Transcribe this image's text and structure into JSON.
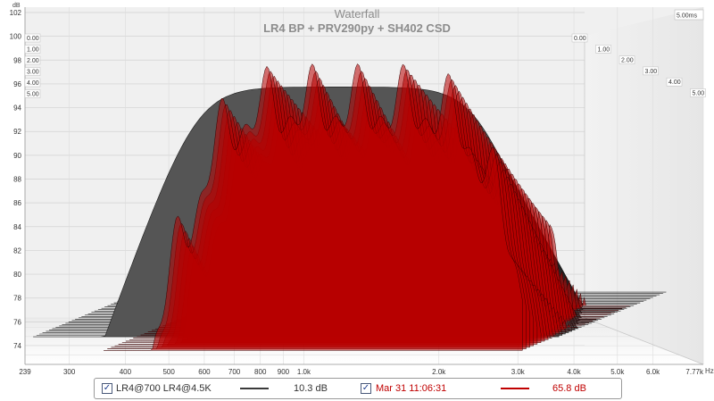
{
  "chart_data": {
    "type": "waterfall",
    "title": "Waterfall",
    "subtitle": "LR4 BP + PRV290py + SH402  CSD",
    "ylabel": "dB",
    "xlabel": "Hz",
    "y_ticks": [
      "74",
      "76",
      "78",
      "80",
      "82",
      "84",
      "86",
      "88",
      "90",
      "92",
      "94",
      "96",
      "98",
      "100",
      "102"
    ],
    "x_ticks": [
      "239",
      "300",
      "400",
      "500",
      "600",
      "700",
      "800",
      "900",
      "1.0k",
      "2.0k",
      "3.0k",
      "4.0k",
      "5.0k",
      "6.0k",
      "7.77k"
    ],
    "time_label": "5.00ms",
    "time_ticks_left": [
      "0.00",
      "1.00",
      "2.00",
      "3.00",
      "4.00",
      "5.00"
    ],
    "time_ticks_right": [
      "0.00",
      "1.00",
      "2.00",
      "3.00",
      "4.00",
      "5.00"
    ],
    "ylim": [
      73,
      102
    ],
    "xlim": [
      239,
      7770
    ],
    "series": [
      {
        "name": "LR4@700 LR4@4.5K",
        "color": "#3a3a3a",
        "value_label": "10.3 dB"
      },
      {
        "name": "Mar 31 11:06:31",
        "color": "#c00000",
        "value_label": "65.8 dB"
      }
    ]
  },
  "legend": {
    "item1_label": "LR4@700 LR4@4.5K",
    "item1_value": "10.3 dB",
    "item2_label": "Mar 31 11:06:31",
    "item2_value": "65.8 dB",
    "check": "✓"
  }
}
